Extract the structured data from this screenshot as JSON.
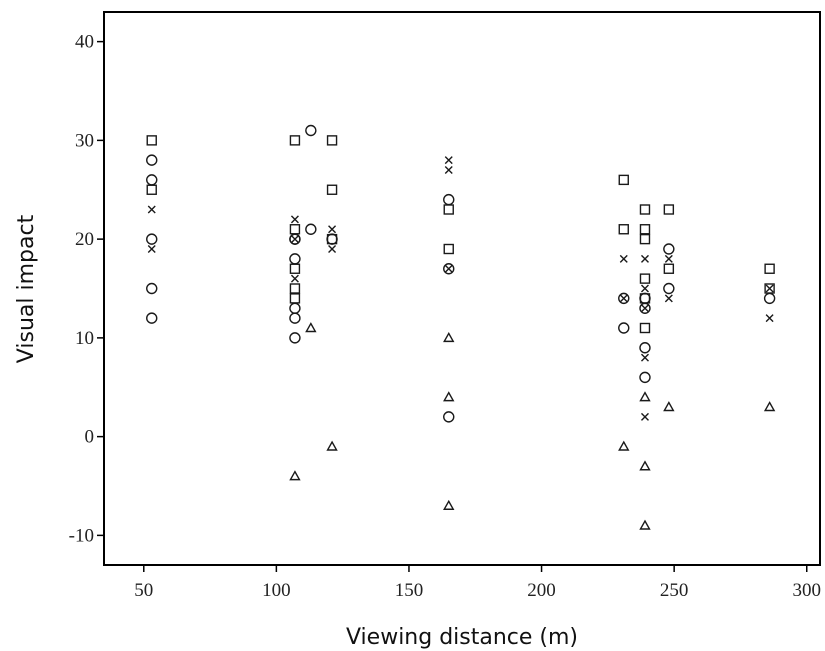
{
  "chart_data": {
    "type": "scatter",
    "title": "",
    "xlabel": "Viewing distance (m)",
    "ylabel": "Visual impact",
    "xlim": [
      35,
      305
    ],
    "ylim": [
      -13,
      43
    ],
    "x_ticks": [
      50,
      100,
      150,
      200,
      250,
      300
    ],
    "y_ticks": [
      -10,
      0,
      10,
      20,
      30,
      40
    ],
    "x_tick_labels": [
      "50",
      "100",
      "150",
      "200",
      "250",
      "300"
    ],
    "y_tick_labels": [
      "-10",
      "0",
      "10",
      "20",
      "30",
      "40"
    ],
    "grid": false,
    "legend": "none",
    "series": [
      {
        "marker": "square",
        "points": [
          [
            53,
            30
          ],
          [
            53,
            25
          ],
          [
            107,
            30
          ],
          [
            107,
            21
          ],
          [
            107,
            17
          ],
          [
            107,
            15
          ],
          [
            107,
            14
          ],
          [
            121,
            30
          ],
          [
            121,
            25
          ],
          [
            121,
            20
          ],
          [
            165,
            23
          ],
          [
            165,
            19
          ],
          [
            231,
            26
          ],
          [
            231,
            21
          ],
          [
            239,
            23
          ],
          [
            239,
            21
          ],
          [
            239,
            20
          ],
          [
            239,
            16
          ],
          [
            239,
            14
          ],
          [
            239,
            11
          ],
          [
            248,
            23
          ],
          [
            248,
            17
          ],
          [
            286,
            17
          ],
          [
            286,
            15
          ]
        ]
      },
      {
        "marker": "circle",
        "points": [
          [
            53,
            28
          ],
          [
            53,
            26
          ],
          [
            53,
            20
          ],
          [
            53,
            15
          ],
          [
            53,
            12
          ],
          [
            107,
            20
          ],
          [
            107,
            18
          ],
          [
            107,
            13
          ],
          [
            107,
            12
          ],
          [
            107,
            10
          ],
          [
            113,
            31
          ],
          [
            113,
            21
          ],
          [
            121,
            20
          ],
          [
            165,
            24
          ],
          [
            165,
            2
          ],
          [
            231,
            11
          ],
          [
            239,
            14
          ],
          [
            239,
            13
          ],
          [
            239,
            9
          ],
          [
            239,
            6
          ],
          [
            248,
            19
          ],
          [
            248,
            15
          ],
          [
            286,
            14
          ]
        ]
      },
      {
        "marker": "cross",
        "points": [
          [
            53,
            23
          ],
          [
            53,
            19
          ],
          [
            107,
            22
          ],
          [
            107,
            16
          ],
          [
            121,
            21
          ],
          [
            121,
            19
          ],
          [
            165,
            28
          ],
          [
            165,
            27
          ],
          [
            231,
            18
          ],
          [
            239,
            18
          ],
          [
            239,
            15
          ],
          [
            239,
            13
          ],
          [
            239,
            8
          ],
          [
            239,
            2
          ],
          [
            248,
            18
          ],
          [
            248,
            14
          ],
          [
            286,
            15
          ],
          [
            286,
            12
          ]
        ]
      },
      {
        "marker": "circle-cross",
        "points": [
          [
            107,
            20
          ],
          [
            165,
            17
          ],
          [
            231,
            14
          ]
        ]
      },
      {
        "marker": "triangle",
        "points": [
          [
            107,
            -4
          ],
          [
            113,
            11
          ],
          [
            121,
            -1
          ],
          [
            165,
            10
          ],
          [
            165,
            4
          ],
          [
            165,
            -7
          ],
          [
            231,
            -1
          ],
          [
            239,
            4
          ],
          [
            239,
            -3
          ],
          [
            239,
            -9
          ],
          [
            248,
            3
          ],
          [
            286,
            3
          ]
        ]
      }
    ]
  }
}
